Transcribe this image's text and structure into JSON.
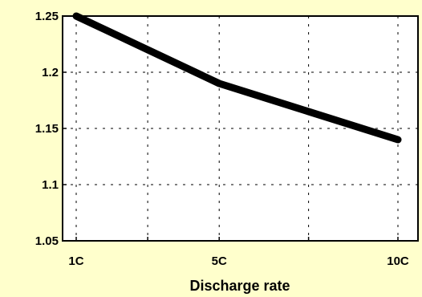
{
  "chart_data": {
    "type": "line",
    "title": "",
    "xlabel": "Discharge rate",
    "ylabel": "",
    "categories": [
      "1C",
      "5C",
      "10C"
    ],
    "x": [
      1,
      5,
      10
    ],
    "series": [
      {
        "values": [
          1.25,
          1.19,
          1.14
        ],
        "color": "#000000"
      }
    ],
    "ylim": [
      1.05,
      1.25
    ],
    "yticks": [
      1.05,
      1.1,
      1.15,
      1.2,
      1.25
    ],
    "ytick_labels": [
      "1.05",
      "1.1",
      "1.15",
      "1.2",
      "1.25"
    ],
    "grid": true,
    "grid_style": "dashed",
    "legend": "none",
    "background_color": "#FFFFCC",
    "plot_background_color": "#FFFFFF"
  }
}
